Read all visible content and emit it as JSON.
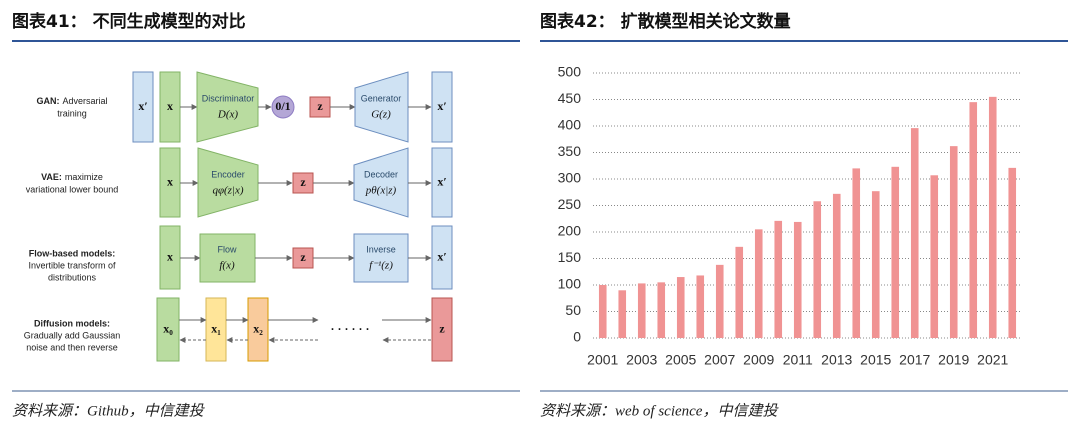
{
  "left": {
    "title": "图表41： 不同生成模型的对比",
    "source": "资料来源：Github，中信建投",
    "rows": [
      {
        "label": "GAN:",
        "desc": [
          "Adversarial",
          "training"
        ],
        "nodes": [
          "x′",
          "x",
          "Discriminator",
          "D(x)",
          "0/1",
          "z",
          "Generator",
          "G(z)",
          "x′"
        ]
      },
      {
        "label": "VAE:",
        "desc": [
          "maximize",
          "variational lower bound"
        ],
        "nodes": [
          "x",
          "Encoder",
          "qφ(z|x)",
          "z",
          "Decoder",
          "pθ(x|z)",
          "x′"
        ]
      },
      {
        "label": "Flow-based models:",
        "desc": [
          "Invertible transform of",
          "distributions"
        ],
        "nodes": [
          "x",
          "Flow",
          "f(x)",
          "z",
          "Inverse",
          "f⁻¹(z)",
          "x′"
        ]
      },
      {
        "label": "Diffusion models:",
        "desc": [
          "Gradually add Gaussian",
          "noise and then reverse"
        ],
        "nodes": [
          "x₀",
          "x₁",
          "x₂",
          "· · ·  · · ·",
          "z"
        ]
      }
    ]
  },
  "chart_data": {
    "type": "bar",
    "title": "图表42： 扩散模型相关论文数量",
    "source": "资料来源：web of science，中信建投",
    "categories": [
      "2001",
      null,
      "2003",
      null,
      "2005",
      null,
      "2007",
      null,
      "2009",
      null,
      "2011",
      null,
      "2013",
      null,
      "2015",
      null,
      "2017",
      null,
      "2019",
      null,
      "2021",
      null
    ],
    "values": [
      100,
      90,
      103,
      105,
      115,
      118,
      138,
      172,
      205,
      221,
      219,
      258,
      272,
      320,
      277,
      323,
      396,
      307,
      362,
      445,
      455,
      321
    ],
    "color": "#f09393",
    "ylim": [
      0,
      500
    ],
    "yticks": [
      0,
      50,
      100,
      150,
      200,
      250,
      300,
      350,
      400,
      450,
      500
    ],
    "grid": true
  }
}
